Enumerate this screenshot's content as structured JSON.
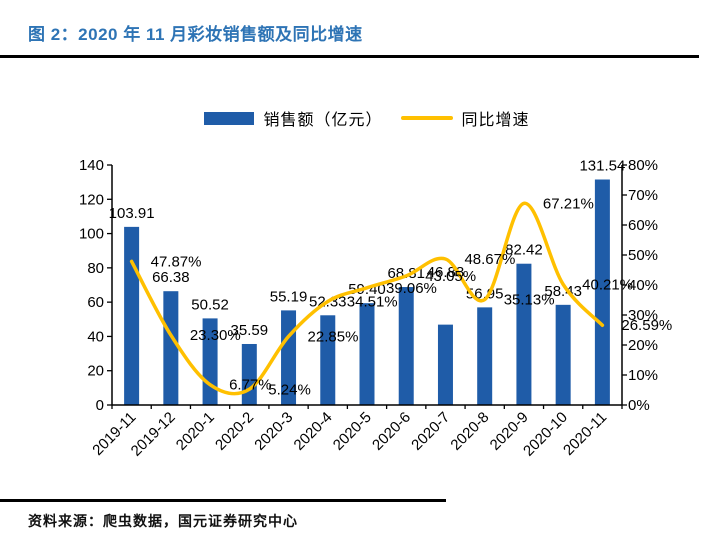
{
  "page": {
    "title": "图 2：2020 年 11 月彩妆销售额及同比增速",
    "source": "资料来源：爬虫数据，国元证券研究中心"
  },
  "legend": {
    "bar_label": "销售额（亿元）",
    "line_label": "同比增速"
  },
  "colors": {
    "bar": "#1F5CA8",
    "line": "#FFC000",
    "title": "#2E74B5",
    "axis": "#000000"
  },
  "chart_data": {
    "type": "bar",
    "subtype": "combo-bar-line",
    "title": "2020 年 11 月彩妆销售额及同比增速",
    "categories": [
      "2019-11",
      "2019-12",
      "2020-1",
      "2020-2",
      "2020-3",
      "2020-4",
      "2020-5",
      "2020-6",
      "2020-7",
      "2020-8",
      "2020-9",
      "2020-10",
      "2020-11"
    ],
    "series": [
      {
        "name": "销售额（亿元）",
        "type": "bar",
        "axis": "left",
        "values": [
          103.91,
          66.38,
          50.52,
          35.59,
          55.19,
          52.33,
          59.4,
          68.81,
          46.88,
          56.95,
          82.42,
          58.43,
          131.54
        ],
        "labels": [
          "103.91",
          "66.38",
          "50.52",
          "35.59",
          "55.19",
          "52.33",
          "59.40",
          "68.81",
          "46.88",
          "56.95",
          "82.42",
          "58.43",
          "131.54"
        ]
      },
      {
        "name": "同比增速",
        "type": "line",
        "axis": "right",
        "values_pct": [
          47.87,
          23.3,
          6.77,
          5.24,
          22.85,
          34.51,
          39.06,
          43.05,
          48.67,
          35.13,
          67.21,
          40.21,
          26.59
        ],
        "labels": [
          "47.87%",
          "23.30%",
          "6.77%",
          "5.24%",
          "22.85%",
          "34.51%",
          "39.06%",
          "43.05%",
          "48.67%",
          "35.13%",
          "67.21%",
          "40.21%",
          "26.59%"
        ]
      }
    ],
    "left_axis": {
      "min": 0,
      "max": 140,
      "step": 20,
      "ticks": [
        "0",
        "20",
        "40",
        "60",
        "80",
        "100",
        "120",
        "140"
      ]
    },
    "right_axis": {
      "min": 0,
      "max": 80,
      "step": 10,
      "ticks": [
        "0%",
        "10%",
        "20%",
        "30%",
        "40%",
        "50%",
        "60%",
        "70%",
        "80%"
      ]
    },
    "grid": false,
    "legend_position": "top",
    "smoothed_line": true
  }
}
